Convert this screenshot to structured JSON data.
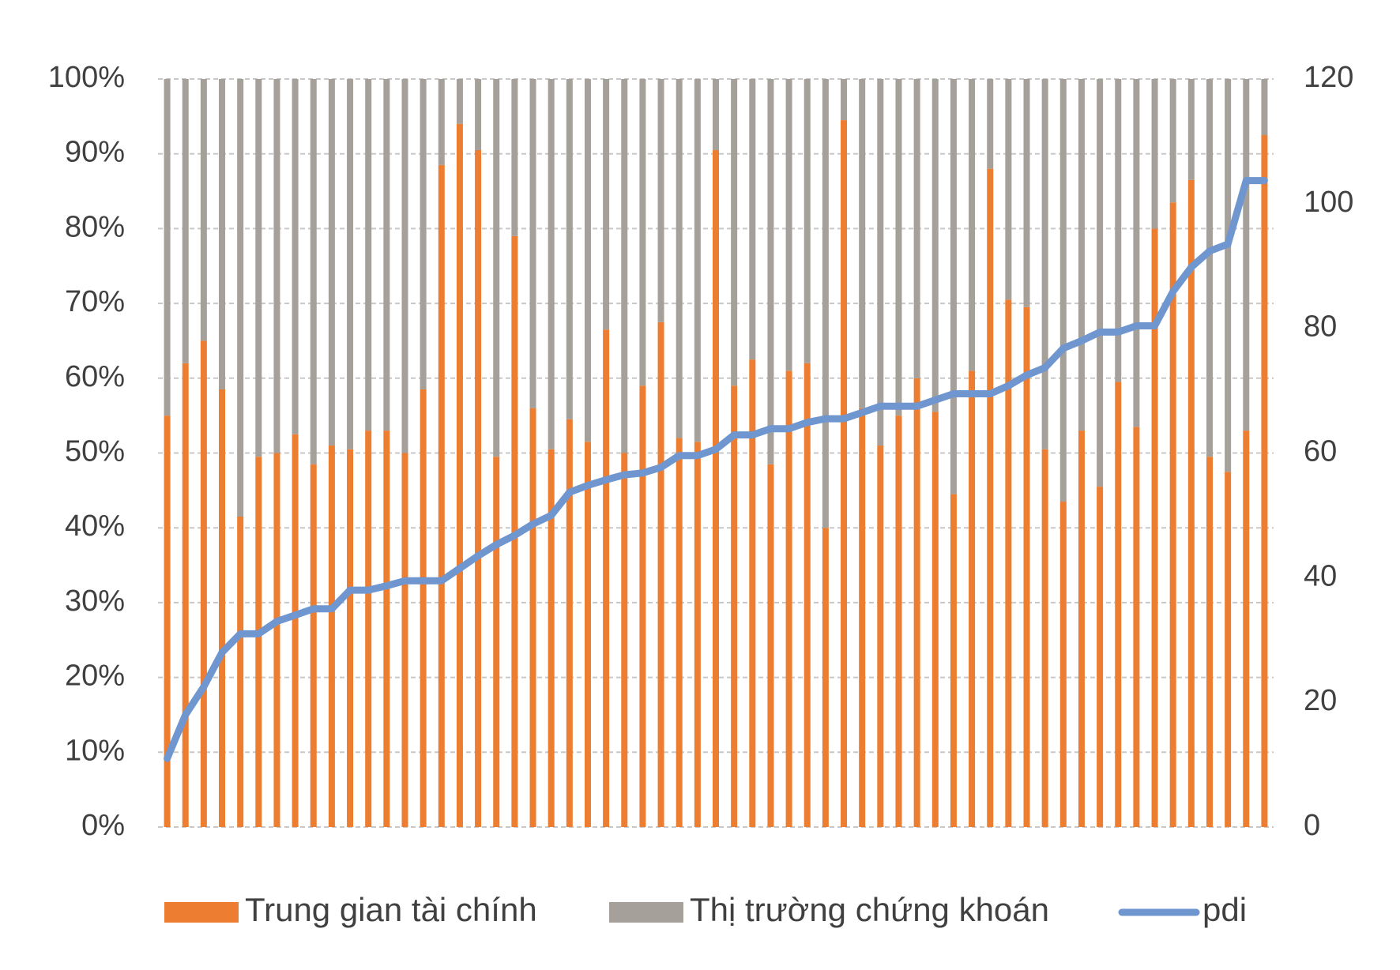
{
  "chart_data": {
    "type": "bar_line",
    "categories": [
      null,
      null,
      null,
      null,
      null,
      null,
      null,
      null,
      null,
      null,
      null,
      null,
      null,
      null,
      null,
      null,
      null,
      null,
      null,
      null,
      null,
      null,
      null,
      null,
      null,
      null,
      null,
      null,
      null,
      null,
      null,
      null,
      null,
      null,
      null,
      null,
      null,
      null,
      null,
      null,
      null,
      null,
      null,
      null,
      null,
      null,
      null,
      null,
      null,
      null,
      null,
      null,
      null,
      null,
      null,
      null,
      null,
      null,
      null,
      null,
      null
    ],
    "series": [
      {
        "name": "Trung gian tài chính",
        "color": "#ed7d31",
        "stack": true,
        "values": [
          55,
          62,
          65,
          58.5,
          41.5,
          49.5,
          50,
          52.5,
          48.5,
          51,
          50.5,
          53,
          53,
          50,
          58.5,
          88.5,
          94,
          90.5,
          49.5,
          79,
          56,
          50.5,
          54.5,
          51.5,
          66.5,
          50,
          59,
          67.5,
          52,
          51.5,
          90.5,
          59,
          62.5,
          48.5,
          61,
          62,
          40,
          94.5,
          56,
          51,
          55,
          60,
          55.5,
          44.5,
          61,
          88,
          70.5,
          69.5,
          50.5,
          43.5,
          53,
          45.5,
          59.5,
          53.5,
          80,
          83.5,
          86.5,
          49.5,
          47.5,
          53,
          92.5
        ]
      },
      {
        "name": "Thị trường chứng khoán",
        "color": "#a5a09a",
        "stack": true,
        "values": [
          45,
          38,
          35,
          41.5,
          58.5,
          50.5,
          50,
          47.5,
          51.5,
          49,
          49.5,
          47,
          47,
          50,
          41.5,
          11.5,
          6,
          9.5,
          50.5,
          21,
          44,
          49.5,
          45.5,
          48.5,
          33.5,
          50,
          41,
          32.5,
          48,
          48.5,
          9.5,
          41,
          37.5,
          51.5,
          39,
          38,
          60,
          5.5,
          44,
          49,
          45,
          40,
          44.5,
          55.5,
          39,
          12,
          29.5,
          30.5,
          49.5,
          56.5,
          47,
          54.5,
          40.5,
          46.5,
          20,
          16.5,
          13.5,
          50.5,
          52.5,
          47,
          7.5
        ]
      },
      {
        "name": "pdi",
        "color": "#6f96cf",
        "type": "line",
        "axis": "y2",
        "values": [
          11,
          18,
          22.5,
          28,
          31,
          31,
          33,
          34,
          35,
          35,
          38,
          38,
          38.7,
          39.5,
          39.5,
          39.5,
          41.5,
          43.5,
          45.3,
          46.8,
          48.6,
          50,
          53.7,
          54.8,
          55.7,
          56.5,
          56.8,
          57.7,
          59.6,
          59.6,
          60.6,
          62.9,
          62.9,
          63.9,
          63.9,
          64.9,
          65.5,
          65.5,
          66.5,
          67.5,
          67.5,
          67.5,
          68.5,
          69.5,
          69.5,
          69.5,
          70.8,
          72.5,
          73.7,
          76.8,
          78,
          79.4,
          79.4,
          80.4,
          80.4,
          85.9,
          89.8,
          92.4,
          93.5,
          103.7,
          103.7
        ]
      }
    ],
    "ylim": [
      0,
      100
    ],
    "yticks": [
      {
        "value": 0,
        "label": "0%"
      },
      {
        "value": 10,
        "label": "10%"
      },
      {
        "value": 20,
        "label": "20%"
      },
      {
        "value": 30,
        "label": "30%"
      },
      {
        "value": 40,
        "label": "40%"
      },
      {
        "value": 50,
        "label": "50%"
      },
      {
        "value": 60,
        "label": "60%"
      },
      {
        "value": 70,
        "label": "70%"
      },
      {
        "value": 80,
        "label": "80%"
      },
      {
        "value": 90,
        "label": "90%"
      },
      {
        "value": 100,
        "label": "100%"
      }
    ],
    "y2lim": [
      0,
      120
    ],
    "y2ticks": [
      0,
      20,
      40,
      60,
      80,
      100,
      120
    ],
    "grid": true,
    "legend": "bottom"
  }
}
